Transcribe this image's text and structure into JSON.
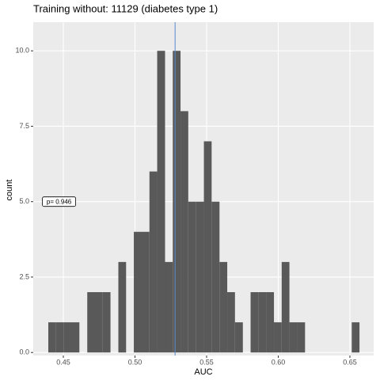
{
  "chart_data": {
    "type": "histogram",
    "title": "Training without: 11129 (diabetes type 1)",
    "xlabel": "AUC",
    "ylabel": "count",
    "bins": [
      0.4395,
      0.4449,
      0.4504,
      0.4558,
      0.4612,
      0.4667,
      0.4721,
      0.4775,
      0.4829,
      0.4884,
      0.4938,
      0.4992,
      0.5047,
      0.5101,
      0.5155,
      0.521,
      0.5264,
      0.5318,
      0.5372,
      0.5427,
      0.5481,
      0.5535,
      0.559,
      0.5644,
      0.5698,
      0.5753,
      0.5807,
      0.5861,
      0.5915,
      0.597,
      0.6024,
      0.6078,
      0.6133,
      0.6187,
      0.6241,
      0.6296,
      0.635,
      0.6404,
      0.6458,
      0.6513,
      0.6567
    ],
    "values": [
      1,
      1,
      1,
      1,
      0,
      2,
      2,
      2,
      0,
      3,
      0,
      4,
      4,
      6,
      10,
      3,
      10,
      8,
      5,
      5,
      7,
      5,
      3,
      2,
      1,
      0,
      2,
      2,
      2,
      1,
      3,
      1,
      1,
      0,
      0,
      0,
      0,
      0,
      0,
      1
    ],
    "color": "#595959",
    "vline": {
      "value": 0.528,
      "color": "#5b8bd0"
    },
    "annotation": {
      "text": "p= 0.946",
      "x": 0.447,
      "y": 5
    },
    "xlim": [
      0.429,
      0.6666
    ],
    "ylim": [
      -0.1,
      10.95
    ],
    "xticks": [
      {
        "value": 0.45,
        "label": "0.45"
      },
      {
        "value": 0.5,
        "label": "0.50"
      },
      0.55,
      {
        "value": 0.6,
        "label": "0.60"
      },
      0.65
    ],
    "yticks": [
      {
        "value": 0,
        "label": "0.0"
      },
      2.5,
      {
        "value": 5,
        "label": "5.0"
      },
      7.5,
      {
        "value": 10,
        "label": "10.0"
      }
    ],
    "grid": true
  }
}
